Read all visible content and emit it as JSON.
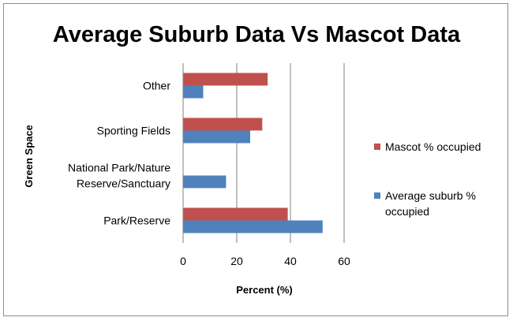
{
  "chart_data": {
    "type": "bar",
    "orientation": "horizontal",
    "title": "Average Suburb Data Vs Mascot Data",
    "xlabel": "Percent (%)",
    "ylabel": "Green Space",
    "xlim": [
      0,
      60
    ],
    "xticks": [
      "0",
      "20",
      "40",
      "60"
    ],
    "grid": true,
    "legend_position": "right",
    "categories": [
      {
        "lines": [
          "Park/Reserve"
        ]
      },
      {
        "lines": [
          "National Park/Nature",
          "Reserve/Sanctuary"
        ]
      },
      {
        "lines": [
          "Sporting Fields"
        ]
      },
      {
        "lines": [
          "Other"
        ]
      }
    ],
    "category_values": [
      "Park/Reserve",
      "National Park/Nature Reserve/Sanctuary",
      "Sporting Fields",
      "Other"
    ],
    "series": [
      {
        "name": "Average suburb % occupied",
        "legend_lines": [
          "Average suburb %",
          "occupied"
        ],
        "color": "#4f81bd",
        "values": [
          52,
          16,
          25,
          7.5
        ]
      },
      {
        "name": "Mascot % occupied",
        "legend_lines": [
          "Mascot % occupied"
        ],
        "color": "#c0504d",
        "values": [
          39,
          0,
          29.5,
          31.5
        ]
      }
    ]
  }
}
